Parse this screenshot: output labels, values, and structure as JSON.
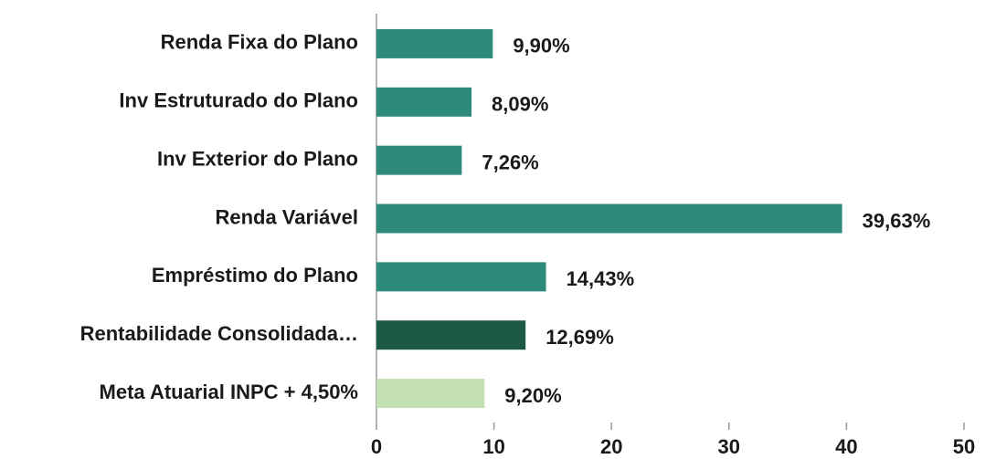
{
  "chart_data": {
    "type": "barh",
    "categories": [
      "Renda Fixa do Plano",
      "Inv Estruturado do Plano",
      "Inv Exterior do Plano",
      "Renda Variável",
      "Empréstimo do Plano",
      "Rentabilidade Consolidada…",
      "Meta Atuarial INPC + 4,50%"
    ],
    "values": [
      9.9,
      8.09,
      7.26,
      39.63,
      14.43,
      12.69,
      9.2
    ],
    "value_labels": [
      "9,90%",
      "8,09%",
      "7,26%",
      "39,63%",
      "14,43%",
      "12,69%",
      "9,20%"
    ],
    "colors": [
      "#2e8b7b",
      "#2e8b7b",
      "#2e8b7b",
      "#2e8b7b",
      "#2e8b7b",
      "#1b5a47",
      "#c3e0b2"
    ],
    "xlim": [
      0,
      50
    ],
    "xticks": [
      0,
      10,
      20,
      30,
      40,
      50
    ],
    "grid": false
  }
}
